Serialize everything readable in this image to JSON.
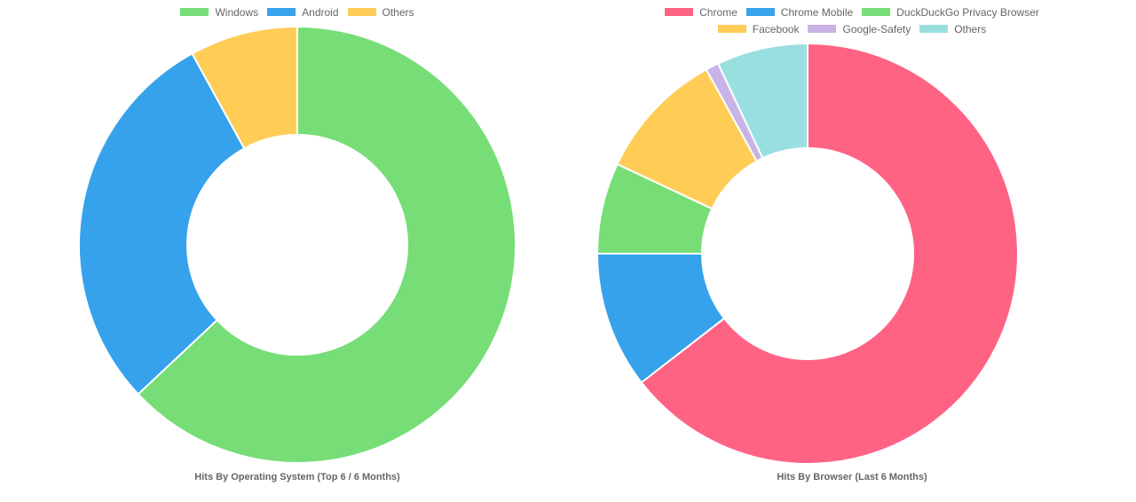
{
  "chart_data": [
    {
      "type": "doughnut",
      "title": "Hits By Operating System (Top 6 / 6 Months)",
      "legend_position": "top",
      "categories": [
        "Windows",
        "Android",
        "Others"
      ],
      "values": [
        63,
        29,
        8
      ],
      "colors": [
        "#77dd77",
        "#36a2eb",
        "#ffcd56"
      ]
    },
    {
      "type": "doughnut",
      "title": "Hits By Browser (Last 6 Months)",
      "legend_position": "top",
      "categories": [
        "Chrome",
        "Chrome Mobile",
        "DuckDuckGo Privacy Browser",
        "Facebook",
        "Google-Safety",
        "Others"
      ],
      "values": [
        64.5,
        10.5,
        7,
        10,
        1,
        7
      ],
      "colors": [
        "#ff6384",
        "#36a2eb",
        "#77dd77",
        "#ffcd56",
        "#c9b3e6",
        "#9ad0f5"
      ]
    }
  ]
}
